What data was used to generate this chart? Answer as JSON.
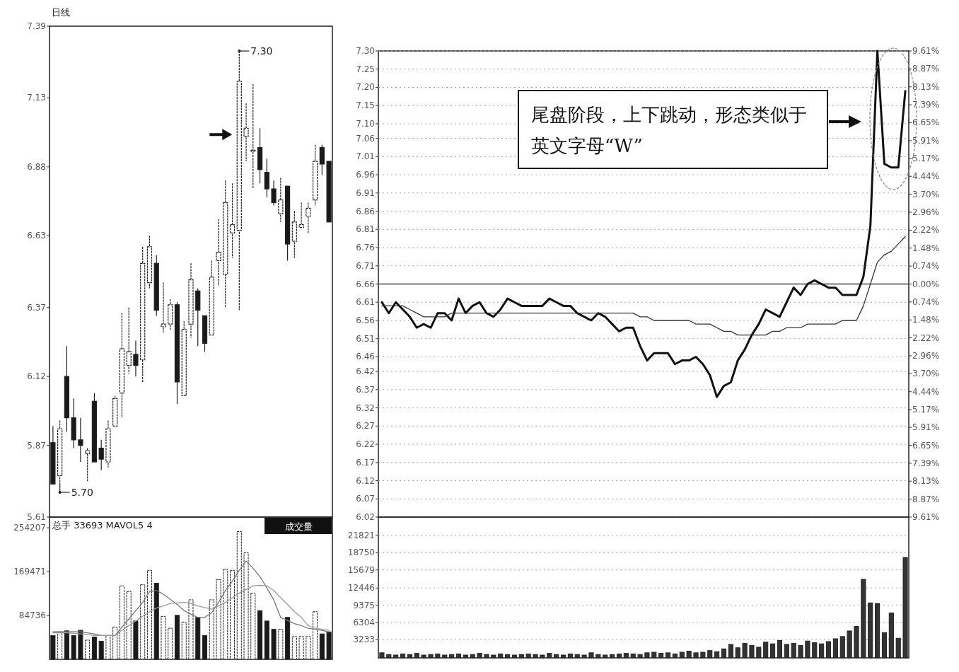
{
  "chart_data": [
    {
      "type": "candlestick",
      "title": "日线",
      "categories": [
        null,
        null,
        null,
        null,
        null,
        null,
        null,
        null,
        null,
        null,
        null,
        null,
        null,
        null,
        null,
        null,
        null,
        null,
        null,
        null,
        null,
        null,
        null,
        null,
        null,
        null,
        null,
        null,
        null,
        null,
        null,
        null,
        null,
        null,
        null,
        null,
        null,
        null,
        null,
        null,
        null
      ],
      "ohlc": [
        [
          5.88,
          5.94,
          5.73,
          5.73
        ],
        [
          5.76,
          5.96,
          5.7,
          5.93
        ],
        [
          6.12,
          6.23,
          5.92,
          5.97
        ],
        [
          5.97,
          6.04,
          5.86,
          5.89
        ],
        [
          5.89,
          5.97,
          5.81,
          5.87
        ],
        [
          5.84,
          5.86,
          5.74,
          5.85
        ],
        [
          6.03,
          6.06,
          5.81,
          5.81
        ],
        [
          5.86,
          5.89,
          5.78,
          5.82
        ],
        [
          5.81,
          5.96,
          5.79,
          5.93
        ],
        [
          5.94,
          6.05,
          5.94,
          6.04
        ],
        [
          6.06,
          6.35,
          5.97,
          6.22
        ],
        [
          6.16,
          6.37,
          6.13,
          6.21
        ],
        [
          6.2,
          6.25,
          6.12,
          6.16
        ],
        [
          6.18,
          6.59,
          6.1,
          6.53
        ],
        [
          6.46,
          6.63,
          6.44,
          6.59
        ],
        [
          6.53,
          6.56,
          6.34,
          6.36
        ],
        [
          6.3,
          6.46,
          6.28,
          6.31
        ],
        [
          6.31,
          6.4,
          6.29,
          6.38
        ],
        [
          6.38,
          6.39,
          6.02,
          6.1
        ],
        [
          6.05,
          6.32,
          6.05,
          6.29
        ],
        [
          6.31,
          6.53,
          6.26,
          6.47
        ],
        [
          6.43,
          6.44,
          6.23,
          6.36
        ],
        [
          6.34,
          6.34,
          6.21,
          6.24
        ],
        [
          6.27,
          6.54,
          6.27,
          6.48
        ],
        [
          6.54,
          6.69,
          6.45,
          6.57
        ],
        [
          6.49,
          6.83,
          6.37,
          6.75
        ],
        [
          6.64,
          6.82,
          6.55,
          6.67
        ],
        [
          6.65,
          7.3,
          6.36,
          7.19
        ],
        [
          6.99,
          7.11,
          6.9,
          7.02
        ],
        [
          6.94,
          7.18,
          6.8,
          6.94
        ],
        [
          6.95,
          7.02,
          6.82,
          6.87
        ],
        [
          6.86,
          6.91,
          6.77,
          6.8
        ],
        [
          6.8,
          6.83,
          6.74,
          6.75
        ],
        [
          6.71,
          6.84,
          6.68,
          6.76
        ],
        [
          6.81,
          6.81,
          6.54,
          6.6
        ],
        [
          6.61,
          6.72,
          6.55,
          6.68
        ],
        [
          6.66,
          6.75,
          6.66,
          6.67
        ],
        [
          6.7,
          6.75,
          6.64,
          6.73
        ],
        [
          6.76,
          6.96,
          6.74,
          6.9
        ],
        [
          6.95,
          6.96,
          6.85,
          6.89
        ],
        [
          6.9,
          6.9,
          6.68,
          6.68
        ]
      ],
      "ylim": [
        5.61,
        7.39
      ],
      "yticks": [
        5.61,
        5.87,
        6.12,
        6.37,
        6.63,
        6.88,
        7.13,
        7.39
      ],
      "annotations": [
        "7.30",
        "5.70"
      ]
    },
    {
      "type": "bar",
      "subtitle": "总手 33693 MAVOL5 4",
      "annotations": [
        "成交量"
      ],
      "categories": [
        null,
        null,
        null,
        null,
        null,
        null,
        null,
        null,
        null,
        null,
        null,
        null,
        null,
        null,
        null,
        null,
        null,
        null,
        null,
        null,
        null,
        null,
        null,
        null,
        null,
        null,
        null,
        null,
        null,
        null,
        null,
        null,
        null,
        null,
        null,
        null,
        null,
        null,
        null,
        null,
        null
      ],
      "series": [
        {
          "type": "bar",
          "values": [
            46000,
            53000,
            55000,
            46000,
            56000,
            37000,
            43000,
            35000,
            46000,
            62000,
            142000,
            131000,
            74000,
            144000,
            172000,
            147000,
            83000,
            60000,
            85000,
            72000,
            115000,
            81000,
            46000,
            115000,
            154000,
            174000,
            172000,
            247000,
            206000,
            128000,
            94000,
            74000,
            58000,
            58000,
            81000,
            44000,
            44000,
            44000,
            92000,
            49000,
            53000
          ],
          "colors": [
            "#1a1a1a",
            "#ffffff",
            "#1a1a1a",
            "#1a1a1a",
            "#1a1a1a",
            "#ffffff",
            "#1a1a1a",
            "#1a1a1a",
            "#ffffff",
            "#ffffff",
            "#ffffff",
            "#ffffff",
            "#1a1a1a",
            "#ffffff",
            "#ffffff",
            "#1a1a1a",
            "#ffffff",
            "#ffffff",
            "#1a1a1a",
            "#ffffff",
            "#ffffff",
            "#1a1a1a",
            "#1a1a1a",
            "#ffffff",
            "#ffffff",
            "#ffffff",
            "#ffffff",
            "#ffffff",
            "#ffffff",
            "#ffffff",
            "#1a1a1a",
            "#1a1a1a",
            "#1a1a1a",
            "#ffffff",
            "#1a1a1a",
            "#ffffff",
            "#ffffff",
            "#ffffff",
            "#ffffff",
            "#1a1a1a",
            "#1a1a1a"
          ]
        },
        {
          "type": "line",
          "color": "#777777",
          "values": [
            53000,
            53000,
            53000,
            53000,
            53000,
            51000,
            49000,
            46000,
            46000,
            46000,
            62000,
            78000,
            94000,
            110000,
            131000,
            133000,
            126000,
            116000,
            106000,
            94000,
            87000,
            81000,
            81000,
            90000,
            110000,
            133000,
            151000,
            172000,
            190000,
            176000,
            160000,
            138000,
            115000,
            81000,
            75000,
            69000,
            65000,
            60000,
            58000,
            56000,
            53000
          ]
        },
        {
          "type": "line",
          "color": "#9a9a9a",
          "values": [
            51000,
            51000,
            51000,
            50000,
            49000,
            48000,
            46000,
            46000,
            46000,
            46000,
            56000,
            65000,
            74000,
            83000,
            92000,
            99000,
            103000,
            108000,
            109000,
            110000,
            108000,
            103000,
            100000,
            97000,
            103000,
            110000,
            119000,
            128000,
            135000,
            142000,
            143000,
            142000,
            133000,
            119000,
            106000,
            92000,
            81000,
            65000,
            60000,
            58000,
            56000
          ]
        }
      ],
      "ylim": [
        0,
        275000
      ],
      "yticks": [
        84736,
        169471,
        254207
      ]
    },
    {
      "type": "line",
      "categories": [
        null,
        null,
        null,
        null,
        null,
        null,
        null,
        null,
        null,
        null,
        null,
        null,
        null,
        null,
        null,
        null,
        null,
        null,
        null,
        null,
        null,
        null,
        null,
        null,
        null,
        null,
        null,
        null,
        null,
        null,
        null,
        null,
        null,
        null,
        null,
        null,
        null,
        null,
        null,
        null,
        null,
        null,
        null,
        null,
        null,
        null,
        null,
        null,
        null,
        null,
        null,
        null,
        null,
        null,
        null,
        null,
        null,
        null,
        null,
        null,
        null,
        null,
        null,
        null,
        null,
        null,
        null,
        null,
        null,
        null,
        null,
        null,
        null,
        null,
        null,
        null
      ],
      "series": [
        {
          "color": "#111111",
          "values": [
            6.61,
            6.58,
            6.61,
            6.59,
            6.57,
            6.54,
            6.55,
            6.54,
            6.58,
            6.58,
            6.56,
            6.62,
            6.58,
            6.6,
            6.61,
            6.58,
            6.57,
            6.59,
            6.62,
            6.61,
            6.6,
            6.6,
            6.6,
            6.6,
            6.62,
            6.61,
            6.6,
            6.6,
            6.58,
            6.57,
            6.56,
            6.58,
            6.57,
            6.55,
            6.53,
            6.54,
            6.54,
            6.49,
            6.45,
            6.47,
            6.47,
            6.47,
            6.44,
            6.45,
            6.45,
            6.46,
            6.44,
            6.41,
            6.35,
            6.38,
            6.39,
            6.45,
            6.48,
            6.52,
            6.55,
            6.59,
            6.58,
            6.57,
            6.61,
            6.65,
            6.63,
            6.66,
            6.67,
            6.66,
            6.65,
            6.65,
            6.63,
            6.63,
            6.63,
            6.68,
            6.82,
            7.3,
            6.99,
            6.98,
            6.98,
            7.19
          ]
        },
        {
          "color": "#333333",
          "values": [
            6.6,
            6.6,
            6.6,
            6.6,
            6.59,
            6.58,
            6.57,
            6.57,
            6.57,
            6.57,
            6.58,
            6.58,
            6.58,
            6.58,
            6.58,
            6.58,
            6.58,
            6.58,
            6.58,
            6.58,
            6.58,
            6.58,
            6.58,
            6.58,
            6.58,
            6.58,
            6.58,
            6.58,
            6.58,
            6.58,
            6.58,
            6.58,
            6.58,
            6.58,
            6.58,
            6.58,
            6.58,
            6.57,
            6.57,
            6.56,
            6.56,
            6.56,
            6.56,
            6.56,
            6.56,
            6.55,
            6.55,
            6.55,
            6.54,
            6.53,
            6.53,
            6.52,
            6.52,
            6.52,
            6.52,
            6.52,
            6.53,
            6.53,
            6.54,
            6.54,
            6.54,
            6.55,
            6.55,
            6.55,
            6.55,
            6.55,
            6.56,
            6.56,
            6.56,
            6.6,
            6.66,
            6.72,
            6.74,
            6.75,
            6.77,
            6.79
          ]
        }
      ],
      "ylim": [
        6.02,
        7.3
      ],
      "yticks": [
        {
          "value": 6.02,
          "label": "6.02"
        },
        {
          "value": 6.07,
          "label": "6.07"
        },
        {
          "value": 6.12,
          "label": "6.12"
        },
        {
          "value": 6.17,
          "label": "6.17"
        },
        {
          "value": 6.22,
          "label": "6.22"
        },
        {
          "value": 6.27,
          "label": "6.27"
        },
        {
          "value": 6.32,
          "label": "6.32"
        },
        {
          "value": 6.37,
          "label": "6.37"
        },
        {
          "value": 6.42,
          "label": "6.42"
        },
        {
          "value": 6.46,
          "label": "6.46"
        },
        {
          "value": 6.51,
          "label": "6.51"
        },
        {
          "value": 6.56,
          "label": "6.56"
        },
        {
          "value": 6.61,
          "label": "6.61"
        },
        {
          "value": 6.66,
          "label": "6.66"
        },
        {
          "value": 6.71,
          "label": "6.71"
        },
        {
          "value": 6.76,
          "label": "6.76"
        },
        {
          "value": 6.81,
          "label": "6.81"
        },
        {
          "value": 6.86,
          "label": "6.86"
        },
        {
          "value": 6.91,
          "label": "6.91"
        },
        {
          "value": 6.96,
          "label": "6.96"
        },
        {
          "value": 7.01,
          "label": "7.01"
        },
        {
          "value": 7.06,
          "label": "7.06"
        },
        {
          "value": 7.1,
          "label": "7.10"
        },
        {
          "value": 7.15,
          "label": "7.15"
        },
        {
          "value": 7.2,
          "label": "7.20"
        },
        {
          "value": 7.25,
          "label": "7.25"
        },
        {
          "value": 7.3,
          "label": "7.30"
        }
      ],
      "y2lim": [
        -9.61,
        9.61
      ],
      "y2ticks": [
        {
          "value": -9.61,
          "label": "9.61%"
        },
        {
          "value": -8.87,
          "label": "8.87%"
        },
        {
          "value": -8.13,
          "label": "8.13%"
        },
        {
          "value": -7.39,
          "label": "7.39%"
        },
        {
          "value": -6.65,
          "label": "6.65%"
        },
        {
          "value": -5.91,
          "label": "5.91%"
        },
        {
          "value": -5.17,
          "label": "5.17%"
        },
        {
          "value": -4.44,
          "label": "4.44%"
        },
        {
          "value": -3.7,
          "label": "3.70%"
        },
        {
          "value": -2.96,
          "label": "2.96%"
        },
        {
          "value": -2.22,
          "label": "2.22%"
        },
        {
          "value": -1.48,
          "label": "1.48%"
        },
        {
          "value": -0.74,
          "label": "0.74%"
        },
        {
          "value": 0,
          "label": "0.00%"
        },
        {
          "value": 0.74,
          "label": "0.74%"
        },
        {
          "value": 1.48,
          "label": "1.48%"
        },
        {
          "value": 2.22,
          "label": "2.22%"
        },
        {
          "value": 2.96,
          "label": "2.96%"
        },
        {
          "value": 3.7,
          "label": "3.70%"
        },
        {
          "value": 4.44,
          "label": "4.44%"
        },
        {
          "value": 5.17,
          "label": "5.17%"
        },
        {
          "value": 5.91,
          "label": "5.91%"
        },
        {
          "value": 6.65,
          "label": "6.65%"
        },
        {
          "value": 7.39,
          "label": "7.39%"
        },
        {
          "value": 8.13,
          "label": "8.13%"
        },
        {
          "value": 8.87,
          "label": "8.87%"
        },
        {
          "value": 9.61,
          "label": "9.61%"
        }
      ],
      "grid": "y",
      "ref_lines": [
        {
          "axis": "y",
          "value": 6.66,
          "color": "#444444"
        }
      ],
      "annotations": [
        "尾盘阶段，上下跳动，形态类似于英文字母“W”"
      ]
    },
    {
      "type": "bar",
      "categories": [
        null,
        null,
        null,
        null,
        null,
        null,
        null,
        null,
        null,
        null,
        null,
        null,
        null,
        null,
        null,
        null,
        null,
        null,
        null,
        null,
        null,
        null,
        null,
        null,
        null,
        null,
        null,
        null,
        null,
        null,
        null,
        null,
        null,
        null,
        null,
        null,
        null,
        null,
        null,
        null,
        null,
        null,
        null,
        null,
        null,
        null,
        null,
        null,
        null,
        null,
        null,
        null,
        null,
        null,
        null,
        null,
        null,
        null,
        null,
        null,
        null,
        null,
        null,
        null,
        null,
        null,
        null,
        null,
        null,
        null,
        null,
        null,
        null,
        null,
        null,
        null
      ],
      "values": [
        900,
        600,
        500,
        700,
        600,
        800,
        500,
        600,
        700,
        500,
        600,
        700,
        500,
        600,
        800,
        600,
        500,
        700,
        600,
        500,
        600,
        700,
        600,
        500,
        800,
        600,
        500,
        700,
        600,
        500,
        900,
        600,
        500,
        600,
        700,
        800,
        700,
        600,
        900,
        1000,
        800,
        900,
        700,
        1000,
        1200,
        900,
        1000,
        1300,
        1100,
        1600,
        2400,
        1800,
        2600,
        2200,
        1900,
        2800,
        2500,
        3100,
        2400,
        2600,
        2200,
        3000,
        2700,
        2500,
        2900,
        3400,
        3800,
        4800,
        5600,
        14000,
        9800,
        9700,
        4500,
        8000,
        3500,
        17900
      ],
      "color": "#333333",
      "ylim": [
        0,
        25100
      ],
      "yticks": [
        3233,
        6304,
        9375,
        12446,
        15679,
        18750,
        21821
      ],
      "grid": "y"
    }
  ]
}
